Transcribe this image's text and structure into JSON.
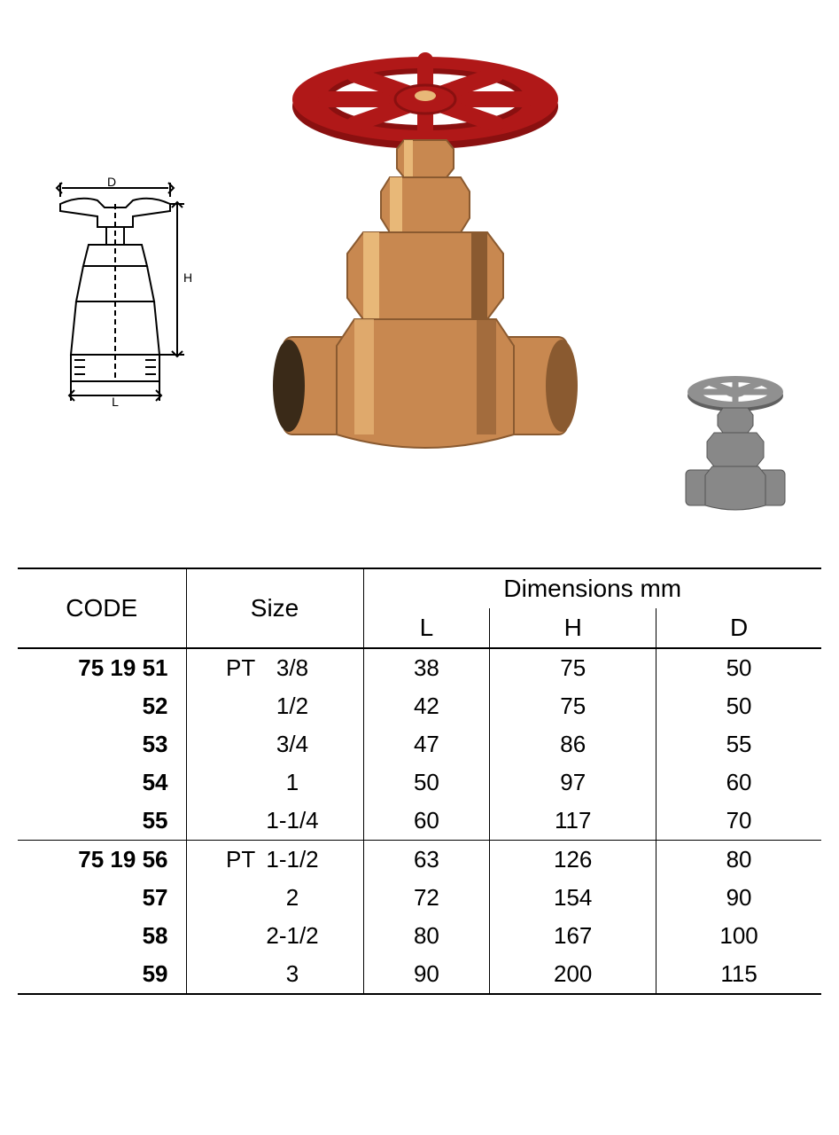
{
  "schematic": {
    "labels": {
      "D": "D",
      "H": "H",
      "L": "L"
    },
    "stroke": "#000000",
    "stroke_width": 2
  },
  "main_valve": {
    "handwheel_color": "#b01818",
    "handwheel_highlight": "#d04040",
    "body_color": "#c88850",
    "body_shadow": "#8a5a30",
    "body_highlight": "#e8b878"
  },
  "small_valve": {
    "color": "#808080",
    "shadow": "#505050",
    "highlight": "#b0b0b0"
  },
  "table": {
    "header": {
      "code": "CODE",
      "size": "Size",
      "dimensions": "Dimensions mm",
      "L": "L",
      "H": "H",
      "D": "D"
    },
    "font_size": 26,
    "header_font_size": 28,
    "border_color": "#000000",
    "groups": [
      {
        "rows": [
          {
            "code": "75 19 51",
            "size_prefix": "PT",
            "size": "3/8",
            "L": "38",
            "H": "75",
            "D": "50"
          },
          {
            "code": "52",
            "size_prefix": "",
            "size": "1/2",
            "L": "42",
            "H": "75",
            "D": "50"
          },
          {
            "code": "53",
            "size_prefix": "",
            "size": "3/4",
            "L": "47",
            "H": "86",
            "D": "55"
          },
          {
            "code": "54",
            "size_prefix": "",
            "size": "1",
            "L": "50",
            "H": "97",
            "D": "60"
          },
          {
            "code": "55",
            "size_prefix": "",
            "size": "1-1/4",
            "L": "60",
            "H": "117",
            "D": "70"
          }
        ]
      },
      {
        "rows": [
          {
            "code": "75 19 56",
            "size_prefix": "PT",
            "size": "1-1/2",
            "L": "63",
            "H": "126",
            "D": "80"
          },
          {
            "code": "57",
            "size_prefix": "",
            "size": "2",
            "L": "72",
            "H": "154",
            "D": "90"
          },
          {
            "code": "58",
            "size_prefix": "",
            "size": "2-1/2",
            "L": "80",
            "H": "167",
            "D": "100"
          },
          {
            "code": "59",
            "size_prefix": "",
            "size": "3",
            "L": "90",
            "H": "200",
            "D": "115"
          }
        ]
      }
    ]
  }
}
